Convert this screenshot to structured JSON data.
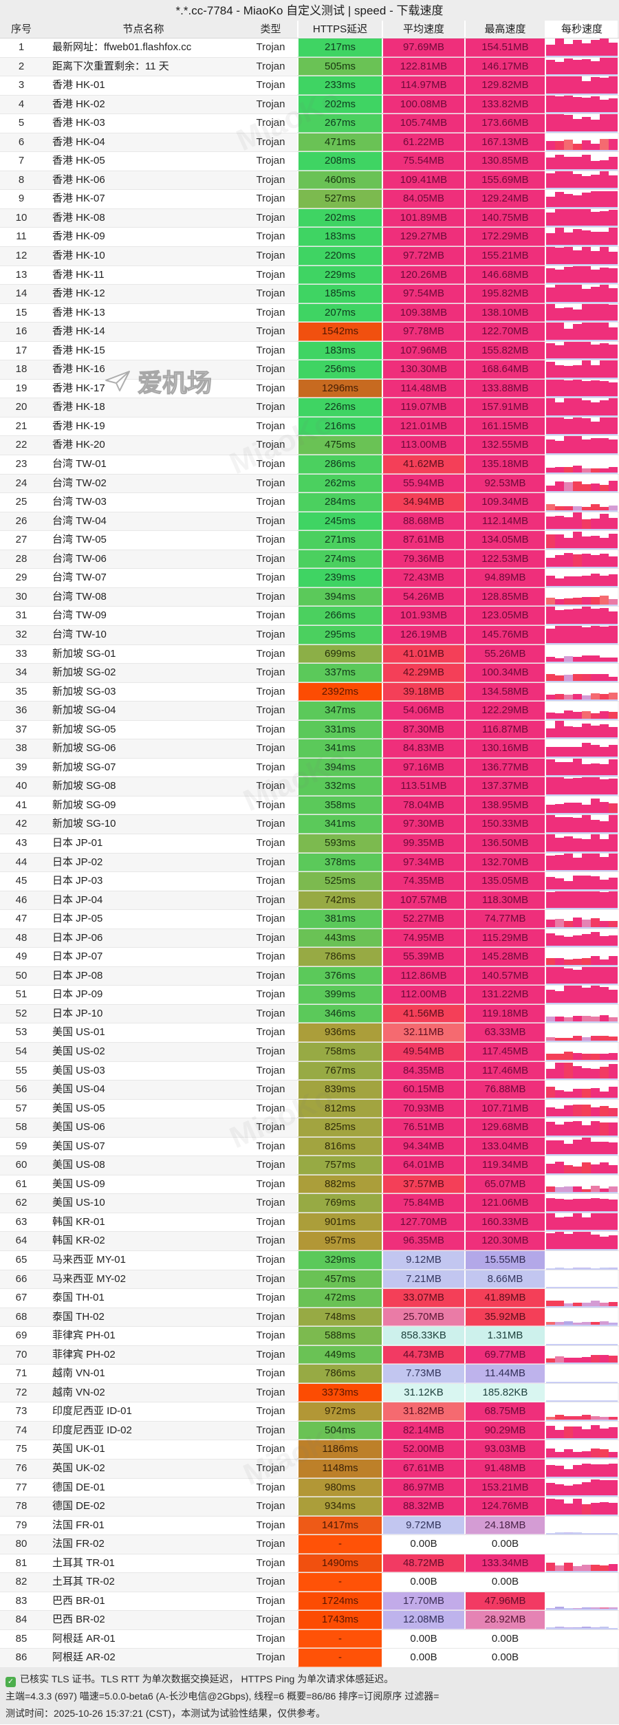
{
  "title": "*.*.cc-7784 - MiaoKo 自定义测试 | speed - 下载速度",
  "columns": [
    "序号",
    "节点名称",
    "类型",
    "HTTPS延迟",
    "平均速度",
    "最高速度",
    "每秒速度"
  ],
  "row_fields": [
    "no",
    "name",
    "type",
    "latency",
    "avg_speed",
    "max_speed"
  ],
  "rows": [
    [
      1,
      "最新网址：ffweb01.flashfox.cc",
      "Trojan",
      "217ms",
      "97.69MB",
      "154.51MB"
    ],
    [
      2,
      "距离下次重置剩余：11 天",
      "Trojan",
      "505ms",
      "122.81MB",
      "146.17MB"
    ],
    [
      3,
      "香港 HK-01",
      "Trojan",
      "233ms",
      "114.97MB",
      "129.82MB"
    ],
    [
      4,
      "香港 HK-02",
      "Trojan",
      "202ms",
      "100.08MB",
      "133.82MB"
    ],
    [
      5,
      "香港 HK-03",
      "Trojan",
      "267ms",
      "105.74MB",
      "173.66MB"
    ],
    [
      6,
      "香港 HK-04",
      "Trojan",
      "471ms",
      "61.22MB",
      "167.13MB"
    ],
    [
      7,
      "香港 HK-05",
      "Trojan",
      "208ms",
      "75.54MB",
      "130.85MB"
    ],
    [
      8,
      "香港 HK-06",
      "Trojan",
      "460ms",
      "109.41MB",
      "155.69MB"
    ],
    [
      9,
      "香港 HK-07",
      "Trojan",
      "527ms",
      "84.05MB",
      "129.24MB"
    ],
    [
      10,
      "香港 HK-08",
      "Trojan",
      "202ms",
      "101.89MB",
      "140.75MB"
    ],
    [
      11,
      "香港 HK-09",
      "Trojan",
      "183ms",
      "129.27MB",
      "172.29MB"
    ],
    [
      12,
      "香港 HK-10",
      "Trojan",
      "220ms",
      "97.72MB",
      "155.21MB"
    ],
    [
      13,
      "香港 HK-11",
      "Trojan",
      "229ms",
      "120.26MB",
      "146.68MB"
    ],
    [
      14,
      "香港 HK-12",
      "Trojan",
      "185ms",
      "97.54MB",
      "195.82MB"
    ],
    [
      15,
      "香港 HK-13",
      "Trojan",
      "207ms",
      "109.38MB",
      "138.10MB"
    ],
    [
      16,
      "香港 HK-14",
      "Trojan",
      "1542ms",
      "97.78MB",
      "122.70MB"
    ],
    [
      17,
      "香港 HK-15",
      "Trojan",
      "183ms",
      "107.96MB",
      "155.82MB"
    ],
    [
      18,
      "香港 HK-16",
      "Trojan",
      "256ms",
      "130.30MB",
      "168.64MB"
    ],
    [
      19,
      "香港 HK-17",
      "Trojan",
      "1296ms",
      "114.48MB",
      "133.88MB"
    ],
    [
      20,
      "香港 HK-18",
      "Trojan",
      "226ms",
      "119.07MB",
      "157.91MB"
    ],
    [
      21,
      "香港 HK-19",
      "Trojan",
      "216ms",
      "121.01MB",
      "161.15MB"
    ],
    [
      22,
      "香港 HK-20",
      "Trojan",
      "475ms",
      "113.00MB",
      "132.55MB"
    ],
    [
      23,
      "台湾 TW-01",
      "Trojan",
      "286ms",
      "41.62MB",
      "135.18MB"
    ],
    [
      24,
      "台湾 TW-02",
      "Trojan",
      "262ms",
      "55.94MB",
      "92.53MB"
    ],
    [
      25,
      "台湾 TW-03",
      "Trojan",
      "284ms",
      "34.94MB",
      "109.34MB"
    ],
    [
      26,
      "台湾 TW-04",
      "Trojan",
      "245ms",
      "88.68MB",
      "112.14MB"
    ],
    [
      27,
      "台湾 TW-05",
      "Trojan",
      "271ms",
      "87.61MB",
      "134.05MB"
    ],
    [
      28,
      "台湾 TW-06",
      "Trojan",
      "274ms",
      "79.36MB",
      "122.53MB"
    ],
    [
      29,
      "台湾 TW-07",
      "Trojan",
      "239ms",
      "72.43MB",
      "94.89MB"
    ],
    [
      30,
      "台湾 TW-08",
      "Trojan",
      "394ms",
      "54.26MB",
      "128.85MB"
    ],
    [
      31,
      "台湾 TW-09",
      "Trojan",
      "266ms",
      "101.93MB",
      "123.05MB"
    ],
    [
      32,
      "台湾 TW-10",
      "Trojan",
      "295ms",
      "126.19MB",
      "145.76MB"
    ],
    [
      33,
      "新加坡 SG-01",
      "Trojan",
      "699ms",
      "41.01MB",
      "55.26MB"
    ],
    [
      34,
      "新加坡 SG-02",
      "Trojan",
      "337ms",
      "42.29MB",
      "100.34MB"
    ],
    [
      35,
      "新加坡 SG-03",
      "Trojan",
      "2392ms",
      "39.18MB",
      "134.58MB"
    ],
    [
      36,
      "新加坡 SG-04",
      "Trojan",
      "347ms",
      "54.06MB",
      "122.29MB"
    ],
    [
      37,
      "新加坡 SG-05",
      "Trojan",
      "331ms",
      "87.30MB",
      "116.87MB"
    ],
    [
      38,
      "新加坡 SG-06",
      "Trojan",
      "341ms",
      "84.83MB",
      "130.16MB"
    ],
    [
      39,
      "新加坡 SG-07",
      "Trojan",
      "394ms",
      "97.16MB",
      "136.77MB"
    ],
    [
      40,
      "新加坡 SG-08",
      "Trojan",
      "332ms",
      "113.51MB",
      "137.37MB"
    ],
    [
      41,
      "新加坡 SG-09",
      "Trojan",
      "358ms",
      "78.04MB",
      "138.95MB"
    ],
    [
      42,
      "新加坡 SG-10",
      "Trojan",
      "341ms",
      "97.30MB",
      "150.33MB"
    ],
    [
      43,
      "日本 JP-01",
      "Trojan",
      "593ms",
      "99.35MB",
      "136.50MB"
    ],
    [
      44,
      "日本 JP-02",
      "Trojan",
      "378ms",
      "97.34MB",
      "132.70MB"
    ],
    [
      45,
      "日本 JP-03",
      "Trojan",
      "525ms",
      "74.35MB",
      "135.05MB"
    ],
    [
      46,
      "日本 JP-04",
      "Trojan",
      "742ms",
      "107.57MB",
      "118.30MB"
    ],
    [
      47,
      "日本 JP-05",
      "Trojan",
      "381ms",
      "52.27MB",
      "74.77MB"
    ],
    [
      48,
      "日本 JP-06",
      "Trojan",
      "443ms",
      "74.95MB",
      "115.29MB"
    ],
    [
      49,
      "日本 JP-07",
      "Trojan",
      "786ms",
      "55.39MB",
      "145.28MB"
    ],
    [
      50,
      "日本 JP-08",
      "Trojan",
      "376ms",
      "112.86MB",
      "140.57MB"
    ],
    [
      51,
      "日本 JP-09",
      "Trojan",
      "399ms",
      "112.00MB",
      "131.22MB"
    ],
    [
      52,
      "日本 JP-10",
      "Trojan",
      "346ms",
      "41.56MB",
      "119.18MB"
    ],
    [
      53,
      "美国 US-01",
      "Trojan",
      "936ms",
      "32.11MB",
      "63.33MB"
    ],
    [
      54,
      "美国 US-02",
      "Trojan",
      "758ms",
      "49.54MB",
      "117.45MB"
    ],
    [
      55,
      "美国 US-03",
      "Trojan",
      "767ms",
      "84.35MB",
      "117.46MB"
    ],
    [
      56,
      "美国 US-04",
      "Trojan",
      "839ms",
      "60.15MB",
      "76.88MB"
    ],
    [
      57,
      "美国 US-05",
      "Trojan",
      "812ms",
      "70.93MB",
      "107.71MB"
    ],
    [
      58,
      "美国 US-06",
      "Trojan",
      "825ms",
      "76.51MB",
      "129.68MB"
    ],
    [
      59,
      "美国 US-07",
      "Trojan",
      "816ms",
      "94.34MB",
      "133.04MB"
    ],
    [
      60,
      "美国 US-08",
      "Trojan",
      "757ms",
      "64.01MB",
      "119.34MB"
    ],
    [
      61,
      "美国 US-09",
      "Trojan",
      "882ms",
      "37.57MB",
      "65.07MB"
    ],
    [
      62,
      "美国 US-10",
      "Trojan",
      "769ms",
      "75.84MB",
      "121.06MB"
    ],
    [
      63,
      "韩国 KR-01",
      "Trojan",
      "901ms",
      "127.70MB",
      "160.33MB"
    ],
    [
      64,
      "韩国 KR-02",
      "Trojan",
      "957ms",
      "96.35MB",
      "120.30MB"
    ],
    [
      65,
      "马来西亚 MY-01",
      "Trojan",
      "329ms",
      "9.12MB",
      "15.55MB"
    ],
    [
      66,
      "马来西亚 MY-02",
      "Trojan",
      "457ms",
      "7.21MB",
      "8.66MB"
    ],
    [
      67,
      "泰国 TH-01",
      "Trojan",
      "472ms",
      "33.07MB",
      "41.89MB"
    ],
    [
      68,
      "泰国 TH-02",
      "Trojan",
      "748ms",
      "25.70MB",
      "35.92MB"
    ],
    [
      69,
      "菲律宾 PH-01",
      "Trojan",
      "588ms",
      "858.33KB",
      "1.31MB"
    ],
    [
      70,
      "菲律宾 PH-02",
      "Trojan",
      "449ms",
      "44.73MB",
      "69.77MB"
    ],
    [
      71,
      "越南 VN-01",
      "Trojan",
      "786ms",
      "7.73MB",
      "11.44MB"
    ],
    [
      72,
      "越南 VN-02",
      "Trojan",
      "3373ms",
      "31.12KB",
      "185.82KB"
    ],
    [
      73,
      "印度尼西亚 ID-01",
      "Trojan",
      "972ms",
      "31.82MB",
      "68.75MB"
    ],
    [
      74,
      "印度尼西亚 ID-02",
      "Trojan",
      "504ms",
      "82.14MB",
      "90.29MB"
    ],
    [
      75,
      "英国 UK-01",
      "Trojan",
      "1186ms",
      "52.00MB",
      "93.03MB"
    ],
    [
      76,
      "英国 UK-02",
      "Trojan",
      "1148ms",
      "67.61MB",
      "91.48MB"
    ],
    [
      77,
      "德国 DE-01",
      "Trojan",
      "980ms",
      "86.97MB",
      "153.21MB"
    ],
    [
      78,
      "德国 DE-02",
      "Trojan",
      "934ms",
      "88.32MB",
      "124.76MB"
    ],
    [
      79,
      "法国 FR-01",
      "Trojan",
      "1417ms",
      "9.72MB",
      "24.18MB"
    ],
    [
      80,
      "法国 FR-02",
      "Trojan",
      "-",
      "0.00B",
      "0.00B"
    ],
    [
      81,
      "土耳其 TR-01",
      "Trojan",
      "1490ms",
      "48.72MB",
      "133.34MB"
    ],
    [
      82,
      "土耳其 TR-02",
      "Trojan",
      "-",
      "0.00B",
      "0.00B"
    ],
    [
      83,
      "巴西 BR-01",
      "Trojan",
      "1724ms",
      "17.70MB",
      "47.96MB"
    ],
    [
      84,
      "巴西 BR-02",
      "Trojan",
      "1743ms",
      "12.08MB",
      "28.92MB"
    ],
    [
      85,
      "阿根廷 AR-01",
      "Trojan",
      "-",
      "0.00B",
      "0.00B"
    ],
    [
      86,
      "阿根廷 AR-02",
      "Trojan",
      "-",
      "0.00B",
      "0.00B"
    ]
  ],
  "footer": {
    "check_icon": "✓",
    "line1": "已核实 TLS 证书。TLS RTT 为单次数据交换延迟， HTTPS Ping 为单次请求体感延迟。",
    "line2": "主端=4.3.3 (697) 喵速=5.0.0-beta6 (A-长沙电信@2Gbps), 线程=6 概要=86/86 排序=订阅原序 过滤器=",
    "line3": "测试时间：2025-10-26 15:37:21 (CST)，本测试为试验性结果，仅供参考。"
  },
  "watermarks": {
    "airport": "爱机场",
    "brand": "MiaoKo"
  },
  "colors": {
    "speed_high_magenta": "#ef2f7b",
    "speed_red": "#f43f58",
    "speed_salmon": "#f56a70",
    "speed_pink": "#ea7ba6",
    "speed_purple": "#b3a8e8",
    "speed_periwinkle": "#c2c6f0",
    "speed_pale_cyan": "#d9f6f1",
    "latency_green": "#3fd463",
    "latency_olive": "#a89f3a",
    "latency_orange": "#ee5a17",
    "latency_red_orange": "#fc4c03",
    "bar_baseline": "#c9cdf5",
    "check_green": "#4cae4c"
  }
}
